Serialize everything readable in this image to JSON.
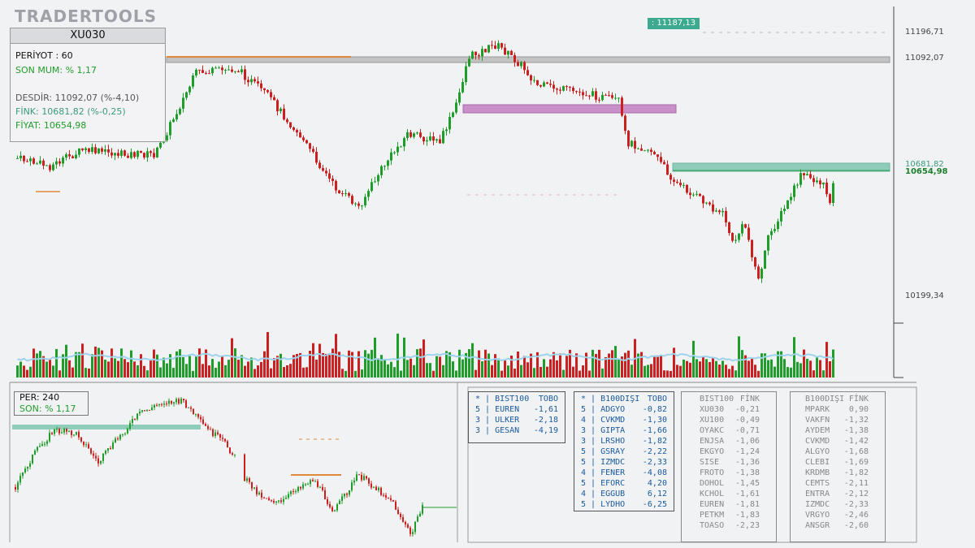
{
  "brand": "TRADERTOOLS",
  "info_box": {
    "symbol": "XU030",
    "period": "PERİYOT : 60",
    "last_candle": "SON MUM: % 1,17",
    "resistance": "DESDİR: 11092,07 (%-4,10)",
    "fink": "FİNK: 10681,82 (%-0,25)",
    "price": "FİYAT: 10654,98"
  },
  "price_axis": {
    "top_tag": ": 11187,13",
    "labels": [
      "11196,71",
      "11092,07",
      "10681,82",
      "10654,98",
      "10199,34"
    ]
  },
  "mini_chart": {
    "period": "PER: 240",
    "last": "SON: % 1,17"
  },
  "table_bist100": {
    "header": [
      "* | BIST100",
      "TOBO"
    ],
    "rows": [
      [
        "5 | EUREN",
        "-1,61"
      ],
      [
        "3 | ULKER",
        "-2,18"
      ],
      [
        "3 | GESAN",
        "-4,19"
      ]
    ]
  },
  "table_b100disi": {
    "header": [
      "* | B100DIŞI",
      "TOBO"
    ],
    "rows": [
      [
        "5 | ADGYO",
        "-0,82"
      ],
      [
        "4 | CVKMD",
        "-1,30"
      ],
      [
        "3 | GIPTA",
        "-1,66"
      ],
      [
        "3 | LRSHO",
        "-1,82"
      ],
      [
        "5 | GSRAY",
        "-2,22"
      ],
      [
        "5 | IZMDC",
        "-2,33"
      ],
      [
        "4 | FENER",
        "-4,08"
      ],
      [
        "5 | EFORC",
        "4,20"
      ],
      [
        "4 | EGGUB",
        "6,12"
      ],
      [
        "5 | LYDHO",
        "-6,25"
      ]
    ]
  },
  "table_bist100_fink": {
    "header": [
      "BIST100",
      "FİNK"
    ],
    "rows": [
      [
        "XU030",
        "-0,21"
      ],
      [
        "XU100",
        "-0,49"
      ],
      [
        "OYAKC",
        "-0,71"
      ],
      [
        "ENJSA",
        "-1,06"
      ],
      [
        "EKGYO",
        "-1,24"
      ],
      [
        "SISE",
        "-1,36"
      ],
      [
        "FROTO",
        "-1,38"
      ],
      [
        "DOHOL",
        "-1,45"
      ],
      [
        "KCHOL",
        "-1,61"
      ],
      [
        "EUREN",
        "-1,81"
      ],
      [
        "PETKM",
        "-1,83"
      ],
      [
        "TOASO",
        "-2,23"
      ]
    ]
  },
  "table_b100disi_fink": {
    "header": [
      "B100DIŞI",
      "FİNK"
    ],
    "rows": [
      [
        "MPARK",
        "0,90"
      ],
      [
        "VAKFN",
        "-1,32"
      ],
      [
        "AYDEM",
        "-1,38"
      ],
      [
        "CVKMD",
        "-1,42"
      ],
      [
        "ALGYO",
        "-1,68"
      ],
      [
        "CLEBI",
        "-1,69"
      ],
      [
        "KRDMB",
        "-1,82"
      ],
      [
        "CEMTS",
        "-2,11"
      ],
      [
        "ENTRA",
        "-2,12"
      ],
      [
        "IZMDC",
        "-2,33"
      ],
      [
        "VRGYO",
        "-2,46"
      ],
      [
        "ANSGR",
        "-2,60"
      ]
    ]
  },
  "colors": {
    "up": "#1f9d2a",
    "down": "#cc1f1f",
    "fink_zone": "#8ecdb9",
    "resistance_zone": "#c3c3c3",
    "purple_zone": "#c88fc8",
    "orange_line": "#e0893a",
    "volume_avg": "#9dd3ec",
    "tag_bg": "#3daa8f"
  }
}
